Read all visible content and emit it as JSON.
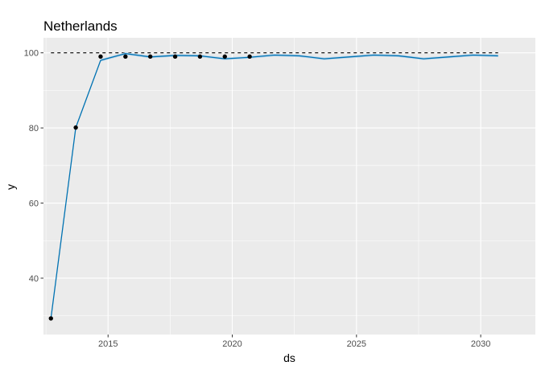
{
  "chart_data": {
    "type": "line",
    "title": "Netherlands",
    "xlabel": "ds",
    "ylabel": "y",
    "xlim": [
      2012.4,
      2032.2
    ],
    "ylim": [
      25,
      104
    ],
    "x_ticks": [
      2015,
      2020,
      2025,
      2030
    ],
    "y_ticks": [
      40,
      60,
      80,
      100
    ],
    "grid": true,
    "cap": 100,
    "series": [
      {
        "kind": "observed-points",
        "color": "#000000",
        "x": [
          2012.7,
          2013.7,
          2014.7,
          2015.7,
          2016.7,
          2017.7,
          2018.7,
          2019.7,
          2020.7
        ],
        "y": [
          29.3,
          80.1,
          99.0,
          99.0,
          99.0,
          99.0,
          99.0,
          99.0,
          99.0
        ]
      },
      {
        "kind": "forecast-line",
        "color": "#0072B2",
        "band_color": "#b8d6ec",
        "x": [
          2012.7,
          2013.7,
          2014.7,
          2015.7,
          2016.7,
          2017.7,
          2018.7,
          2019.7,
          2020.7,
          2021.7,
          2022.7,
          2023.7,
          2024.7,
          2025.7,
          2026.7,
          2027.7,
          2028.7,
          2029.7,
          2030.7
        ],
        "y": [
          29.3,
          80.1,
          98.0,
          99.8,
          98.9,
          99.3,
          99.2,
          98.4,
          98.8,
          99.4,
          99.2,
          98.4,
          98.9,
          99.4,
          99.2,
          98.4,
          98.9,
          99.4,
          99.2
        ]
      }
    ]
  }
}
